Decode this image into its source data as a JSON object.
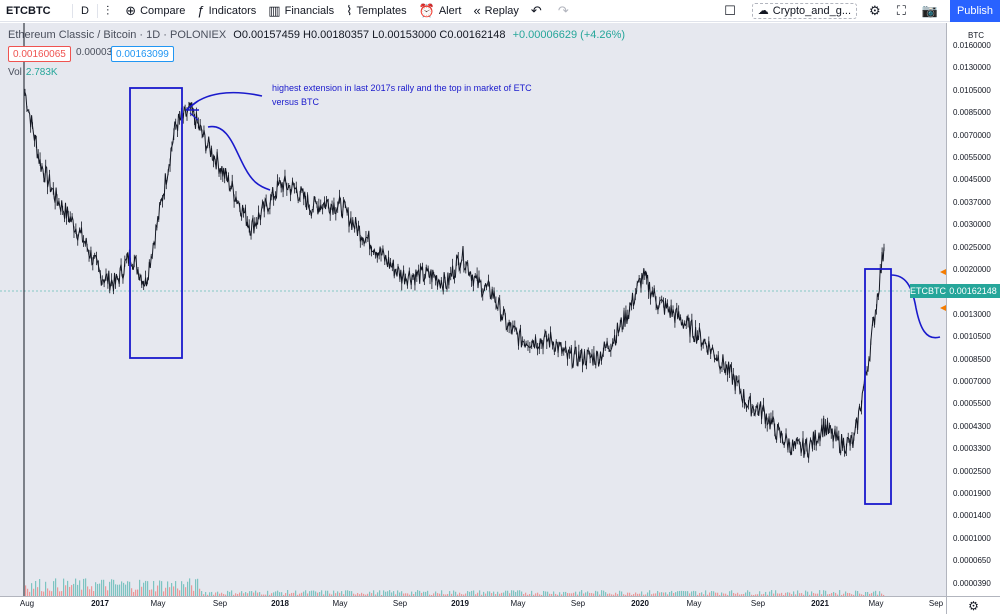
{
  "toolbar": {
    "symbol": "ETCBTC",
    "interval": "D",
    "compare_label": "Compare",
    "indicators_label": "Indicators",
    "financials_label": "Financials",
    "templates_label": "Templates",
    "alert_label": "Alert",
    "replay_label": "Replay",
    "layout_name": "Crypto_and_g...",
    "publish_label": "Publish"
  },
  "legend": {
    "title": "Ethereum Classic / Bitcoin · 1D · POLONIEX",
    "ohlc": "O0.00157459 H0.00180357 L0.00153000 C0.00162148",
    "change": "+0.00006629 (+4.26%)",
    "bid": "0.00160065",
    "spread": "0.00003034",
    "ask": "0.00163099",
    "volume_label": "Vol",
    "volume_value": "2.783K"
  },
  "annotation": {
    "text": "highest extension in last 2017s rally and the top in market of ETC versus BTC"
  },
  "price_axis": {
    "unit": "BTC",
    "labels": [
      "0.0160000",
      "0.0130000",
      "0.0105000",
      "0.0085000",
      "0.0070000",
      "0.0055000",
      "0.0045000",
      "0.0037000",
      "0.0030000",
      "0.0025000",
      "0.0020000",
      "0.0016000",
      "0.0013000",
      "0.0010500",
      "0.0008500",
      "0.0007000",
      "0.0005500",
      "0.0004300",
      "0.0003300",
      "0.0002500",
      "0.0001900",
      "0.0001400",
      "0.0001000",
      "0.0000650",
      "0.0000390"
    ],
    "current_price": "0.00162148",
    "current_symbol": "ETCBTC"
  },
  "time_axis": {
    "labels": [
      {
        "text": "Aug",
        "bold": false
      },
      {
        "text": "2017",
        "bold": true
      },
      {
        "text": "May",
        "bold": false
      },
      {
        "text": "Sep",
        "bold": false
      },
      {
        "text": "2018",
        "bold": true
      },
      {
        "text": "May",
        "bold": false
      },
      {
        "text": "Sep",
        "bold": false
      },
      {
        "text": "2019",
        "bold": true
      },
      {
        "text": "May",
        "bold": false
      },
      {
        "text": "Sep",
        "bold": false
      },
      {
        "text": "2020",
        "bold": true
      },
      {
        "text": "May",
        "bold": false
      },
      {
        "text": "Sep",
        "bold": false
      },
      {
        "text": "2021",
        "bold": true
      },
      {
        "text": "May",
        "bold": false
      },
      {
        "text": "Sep",
        "bold": false
      }
    ]
  },
  "colors": {
    "accent": "#2962ff",
    "up": "#26a69a",
    "down": "#ef5350",
    "drawing": "#1a1acc",
    "chart_bg": "#e6e8ef",
    "price_line": "#131722"
  },
  "chart_data": {
    "type": "line",
    "symbol": "ETCBTC",
    "exchange": "POLONIEX",
    "interval": "1D",
    "log_scale": true,
    "ylim": [
      3.9e-05,
      0.016
    ],
    "grid": false,
    "x": [
      "2016-08",
      "2016-09",
      "2016-10",
      "2016-11",
      "2016-12",
      "2017-01",
      "2017-02",
      "2017-03",
      "2017-04",
      "2017-05",
      "2017-06",
      "2017-07",
      "2017-08",
      "2017-09",
      "2017-10",
      "2017-11",
      "2017-12",
      "2018-01",
      "2018-02",
      "2018-03",
      "2018-04",
      "2018-05",
      "2018-06",
      "2018-07",
      "2018-08",
      "2018-09",
      "2018-10",
      "2018-11",
      "2018-12",
      "2019-01",
      "2019-02",
      "2019-03",
      "2019-04",
      "2019-05",
      "2019-06",
      "2019-07",
      "2019-08",
      "2019-09",
      "2019-10",
      "2019-11",
      "2019-12",
      "2020-01",
      "2020-02",
      "2020-03",
      "2020-04",
      "2020-05",
      "2020-06",
      "2020-07",
      "2020-08",
      "2020-09",
      "2020-10",
      "2020-11",
      "2020-12",
      "2021-01",
      "2021-02",
      "2021-03",
      "2021-04",
      "2021-05"
    ],
    "series": [
      {
        "values": [
          0.0085,
          0.004,
          0.0028,
          0.0022,
          0.0017,
          0.0012,
          0.0011,
          0.0015,
          0.0011,
          0.0025,
          0.006,
          0.007,
          0.005,
          0.0038,
          0.0028,
          0.002,
          0.0025,
          0.0032,
          0.003,
          0.0025,
          0.0026,
          0.0025,
          0.002,
          0.0017,
          0.0014,
          0.0012,
          0.0012,
          0.0012,
          0.0011,
          0.0015,
          0.0011,
          0.001,
          0.0007,
          0.0006,
          0.0006,
          0.0006,
          0.0005,
          0.0005,
          0.0005,
          0.0006,
          0.0008,
          0.0012,
          0.0009,
          0.0008,
          0.0007,
          0.0006,
          0.0005,
          0.0004,
          0.0003,
          0.00028,
          0.00022,
          0.00019,
          0.00019,
          0.00024,
          0.0002,
          0.0002,
          0.0005,
          0.00162
        ]
      }
    ]
  }
}
